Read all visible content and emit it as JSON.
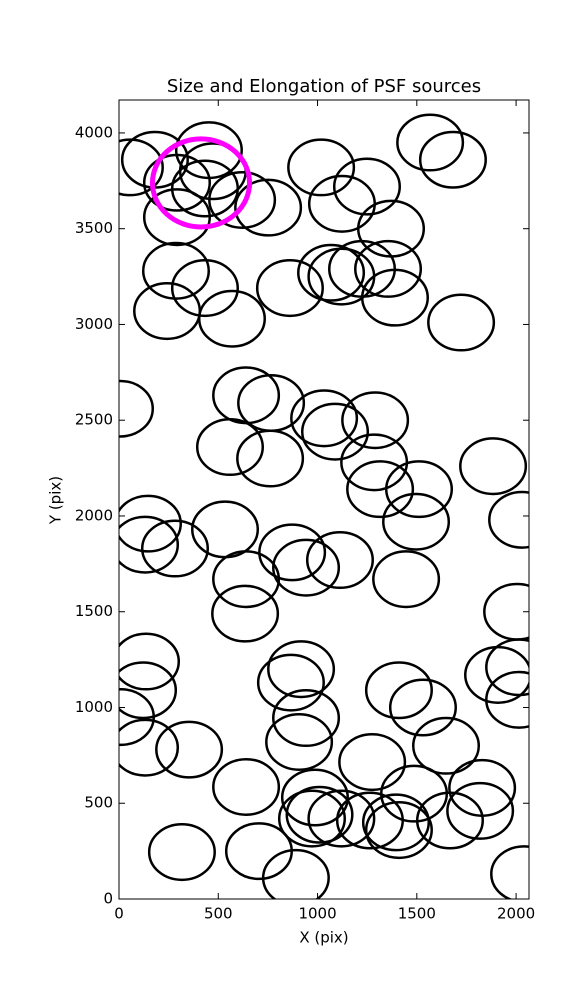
{
  "chart_data": {
    "type": "ellipse",
    "title": "Size and Elongation of PSF sources",
    "x_label": "X (pix)",
    "y_label": "Y (pix)",
    "xlim": [
      0,
      2065
    ],
    "ylim": [
      0,
      4172
    ],
    "xticks": [
      0,
      500,
      1000,
      1500,
      2000
    ],
    "yticks": [
      0,
      500,
      1000,
      1500,
      2000,
      2500,
      3000,
      3500,
      4000
    ],
    "series": [
      {
        "color": "#000000",
        "x": [
          55,
          181,
          453,
          473,
          292,
          433,
          292,
          287,
          433,
          242,
          569,
          620,
          751,
          1018,
          1249,
          1123,
          1370,
          861,
          1068,
          1120,
          1224,
          1355,
          1390,
          1723,
          1567,
          1682,
          5,
          640,
          766,
          1033,
          1088,
          1290,
          559,
          761,
          1285,
          1315,
          1511,
          1496,
          1884,
          2030,
          146,
          131,
          282,
          534,
          640,
          635,
          872,
          942,
          1113,
          1446,
          2005,
          136,
          121,
          10,
          131,
          353,
          917,
          866,
          942,
          907,
          1410,
          1531,
          1647,
          2015,
          1909,
          2015,
          640,
          1275,
          1486,
          1829,
          987,
          972,
          1010,
          1120,
          1264,
          1395,
          1410,
          1667,
          1819,
          317,
          705,
          891,
          2040
        ],
        "values": [
          3820,
          3860,
          3910,
          3800,
          3740,
          3710,
          3560,
          3280,
          3190,
          3070,
          3030,
          3650,
          3610,
          3820,
          3720,
          3630,
          3500,
          3190,
          3270,
          3250,
          3290,
          3290,
          3140,
          3010,
          3950,
          3860,
          2560,
          2630,
          2590,
          2510,
          2440,
          2500,
          2360,
          2300,
          2280,
          2140,
          2140,
          1970,
          2260,
          1980,
          1960,
          1850,
          1830,
          1930,
          1670,
          1490,
          1810,
          1730,
          1770,
          1670,
          1500,
          1240,
          1090,
          950,
          790,
          780,
          1200,
          1130,
          945,
          820,
          1090,
          1000,
          800,
          1210,
          1170,
          1040,
          585,
          715,
          550,
          580,
          530,
          420,
          440,
          420,
          410,
          400,
          360,
          410,
          460,
          245,
          250,
          110,
          130
        ],
        "widths": [
          330,
          330,
          330,
          330,
          330,
          330,
          330,
          330,
          330,
          330,
          330,
          330,
          330,
          330,
          330,
          330,
          330,
          330,
          330,
          330,
          330,
          330,
          330,
          330,
          330,
          330,
          330,
          330,
          330,
          330,
          330,
          330,
          330,
          330,
          330,
          330,
          330,
          330,
          330,
          330,
          330,
          330,
          330,
          330,
          330,
          330,
          330,
          330,
          330,
          330,
          330,
          330,
          330,
          330,
          330,
          330,
          330,
          330,
          330,
          330,
          330,
          330,
          330,
          330,
          330,
          330,
          330,
          330,
          330,
          330,
          330,
          330,
          330,
          330,
          330,
          330,
          330,
          330,
          330,
          330,
          330,
          330,
          330
        ],
        "heights": [
          290,
          290,
          290,
          290,
          290,
          290,
          290,
          290,
          290,
          290,
          290,
          290,
          290,
          290,
          290,
          290,
          290,
          290,
          290,
          290,
          290,
          290,
          290,
          290,
          290,
          290,
          290,
          290,
          290,
          290,
          290,
          290,
          290,
          290,
          290,
          290,
          290,
          290,
          290,
          290,
          290,
          290,
          290,
          290,
          290,
          290,
          290,
          290,
          290,
          290,
          290,
          290,
          290,
          290,
          290,
          290,
          290,
          290,
          290,
          290,
          290,
          290,
          290,
          290,
          290,
          290,
          290,
          290,
          290,
          290,
          290,
          290,
          290,
          290,
          290,
          290,
          290,
          290,
          290,
          290,
          290,
          290,
          290
        ]
      },
      {
        "color": "#ff00ff",
        "x": [
          413
        ],
        "values": [
          3739
        ],
        "widths": [
          489
        ],
        "heights": [
          460
        ]
      }
    ]
  }
}
